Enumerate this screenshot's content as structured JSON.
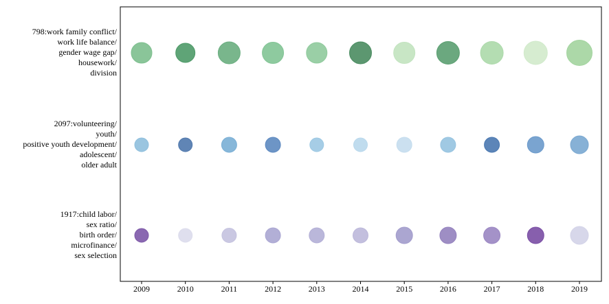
{
  "chart_data": {
    "type": "bubble",
    "categories": [
      "2009",
      "2010",
      "2011",
      "2012",
      "2013",
      "2014",
      "2015",
      "2016",
      "2017",
      "2018",
      "2019"
    ],
    "y_categories": [
      [
        "798:work family conflict/",
        "work life balance/",
        "gender wage gap/",
        "housework/",
        "division"
      ],
      [
        "2097:volunteering/",
        "youth/",
        "positive youth development/",
        "adolescent/",
        "older adult"
      ],
      [
        "1917:child labor/",
        "sex ratio/",
        "birth order/",
        "microfinance/",
        "sex selection"
      ]
    ],
    "series": [
      {
        "sizes": [
          15,
          14,
          16,
          15.5,
          15,
          16,
          15.5,
          16.5,
          16.5,
          17,
          18.5
        ],
        "colors": [
          "#7dbf8e",
          "#4e9a68",
          "#6aae80",
          "#82c495",
          "#8fca9c",
          "#4a8c60",
          "#c2e3bf",
          "#5b9f71",
          "#acd9aa",
          "#d1eacb",
          "#a3d49f"
        ]
      },
      {
        "sizes": [
          10,
          10,
          11,
          11,
          10,
          10,
          11,
          11,
          11,
          12,
          13
        ],
        "colors": [
          "#8fbfdd",
          "#4f78ad",
          "#7aafd5",
          "#5d89c0",
          "#9cc8e3",
          "#b9d8ec",
          "#c5ddee",
          "#96c3e0",
          "#4a78b0",
          "#6b9acb",
          "#7aa8d1"
        ]
      },
      {
        "sizes": [
          10,
          10,
          10.5,
          11,
          11,
          11,
          12,
          12,
          12,
          12,
          13
        ],
        "colors": [
          "#7d58a8",
          "#dcdcec",
          "#c4c2df",
          "#aaa6d2",
          "#b3afd6",
          "#bcb8da",
          "#a29ccc",
          "#9482be",
          "#9a86c2",
          "#7a4ea4",
          "#d3d3e8"
        ]
      }
    ]
  }
}
